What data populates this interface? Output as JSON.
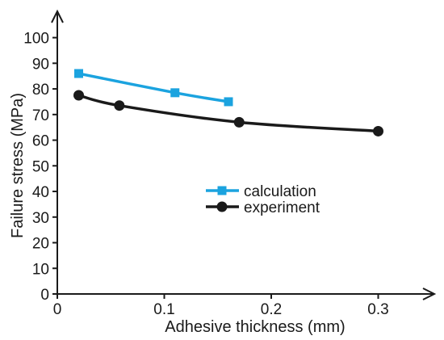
{
  "chart_data": {
    "type": "line",
    "xlabel": "Adhesive thickness (mm)",
    "ylabel": "Failure stress (MPa)",
    "xlim": [
      0,
      0.35
    ],
    "ylim": [
      0,
      105
    ],
    "x_ticks": [
      "0",
      "0.1",
      "0.2",
      "0.3"
    ],
    "y_ticks": [
      "0",
      "10",
      "20",
      "30",
      "40",
      "50",
      "60",
      "70",
      "80",
      "90",
      "100"
    ],
    "grid": false,
    "legend_position": "center",
    "series": [
      {
        "name": "calculation",
        "color": "#1ba3df",
        "marker": "square",
        "points": [
          [
            0.02,
            86
          ],
          [
            0.11,
            78.5
          ],
          [
            0.16,
            75
          ]
        ]
      },
      {
        "name": "experiment",
        "color": "#1a1a1a",
        "marker": "circle",
        "points": [
          [
            0.02,
            77.5
          ],
          [
            0.058,
            73.5
          ],
          [
            0.17,
            67
          ],
          [
            0.3,
            63.5
          ]
        ]
      }
    ]
  }
}
